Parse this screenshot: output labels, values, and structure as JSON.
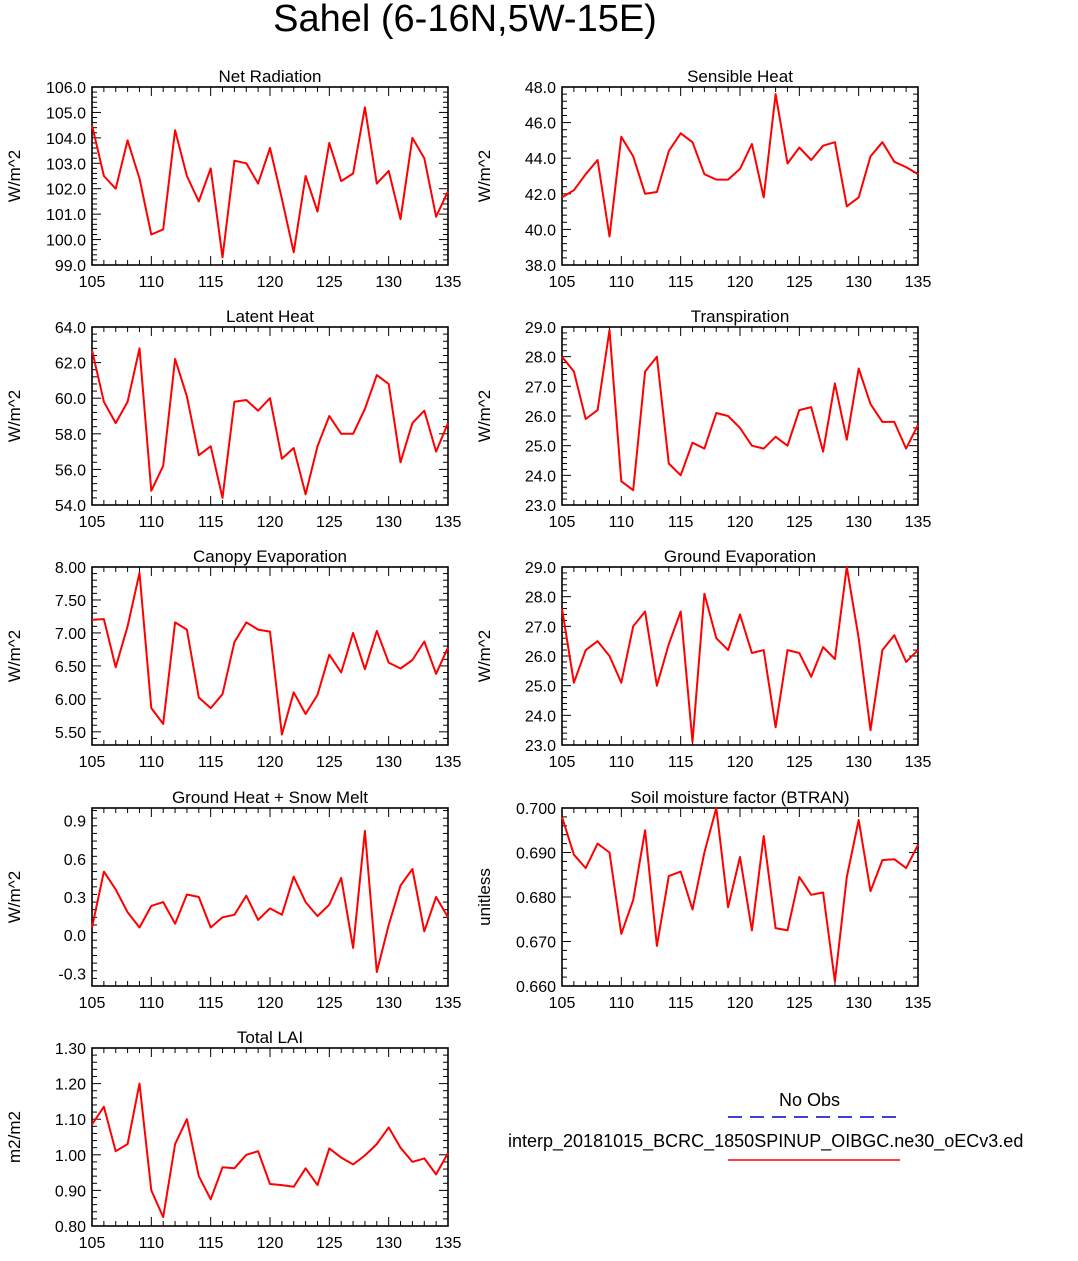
{
  "title": "Sahel (6-16N,5W-15E)",
  "colors": {
    "model_line": "#ff0000",
    "obs_line": "#0000cc",
    "axis": "#000000"
  },
  "legend": {
    "obs_label": "No Obs",
    "model_label": "interp_20181015_BCRC_1850SPINUP_OIBGC.ne30_oECv3.ed"
  },
  "chart_data": [
    {
      "type": "line",
      "title": "Net Radiation",
      "ylabel": "W/m^2",
      "xlim": [
        105,
        135
      ],
      "ylim": [
        99.0,
        106.0
      ],
      "x": [
        105,
        106,
        107,
        108,
        109,
        110,
        111,
        112,
        113,
        114,
        115,
        116,
        117,
        118,
        119,
        120,
        121,
        122,
        123,
        124,
        125,
        126,
        127,
        128,
        129,
        130,
        131,
        132,
        133,
        134,
        135
      ],
      "series": [
        {
          "values": [
            104.5,
            102.5,
            102.0,
            103.9,
            102.4,
            100.2,
            100.4,
            104.3,
            102.5,
            101.5,
            102.8,
            99.3,
            103.1,
            103.0,
            102.2,
            103.6,
            101.6,
            99.5,
            102.5,
            101.1,
            103.8,
            102.3,
            102.6,
            105.2,
            102.2,
            102.7,
            100.8,
            104.0,
            103.2,
            100.9,
            101.9
          ]
        }
      ],
      "xticks": [
        105,
        110,
        115,
        120,
        125,
        130,
        135
      ],
      "yticks": [
        99.0,
        100.0,
        101.0,
        102.0,
        103.0,
        104.0,
        105.0,
        106.0
      ],
      "ytick_labels": [
        "99.0",
        "100.0",
        "101.0",
        "102.0",
        "103.0",
        "104.0",
        "105.0",
        "106.0"
      ]
    },
    {
      "type": "line",
      "title": "Sensible Heat",
      "ylabel": "W/m^2",
      "xlim": [
        105,
        135
      ],
      "ylim": [
        38.0,
        48.0
      ],
      "x": [
        105,
        106,
        107,
        108,
        109,
        110,
        111,
        112,
        113,
        114,
        115,
        116,
        117,
        118,
        119,
        120,
        121,
        122,
        123,
        124,
        125,
        126,
        127,
        128,
        129,
        130,
        131,
        132,
        133,
        134,
        135
      ],
      "series": [
        {
          "values": [
            41.8,
            42.2,
            43.1,
            43.9,
            39.6,
            45.2,
            44.1,
            42.0,
            42.1,
            44.4,
            45.4,
            44.9,
            43.1,
            42.8,
            42.8,
            43.4,
            44.8,
            41.8,
            47.6,
            43.7,
            44.6,
            43.9,
            44.7,
            44.9,
            41.3,
            41.8,
            44.1,
            44.9,
            43.8,
            43.5,
            43.1
          ]
        }
      ],
      "xticks": [
        105,
        110,
        115,
        120,
        125,
        130,
        135
      ],
      "yticks": [
        38.0,
        40.0,
        42.0,
        44.0,
        46.0,
        48.0
      ],
      "ytick_labels": [
        "38.0",
        "40.0",
        "42.0",
        "44.0",
        "46.0",
        "48.0"
      ]
    },
    {
      "type": "line",
      "title": "Latent Heat",
      "ylabel": "W/m^2",
      "xlim": [
        105,
        135
      ],
      "ylim": [
        54.0,
        64.0
      ],
      "x": [
        105,
        106,
        107,
        108,
        109,
        110,
        111,
        112,
        113,
        114,
        115,
        116,
        117,
        118,
        119,
        120,
        121,
        122,
        123,
        124,
        125,
        126,
        127,
        128,
        129,
        130,
        131,
        132,
        133,
        134,
        135
      ],
      "series": [
        {
          "values": [
            62.7,
            59.8,
            58.6,
            59.8,
            62.8,
            54.8,
            56.2,
            62.2,
            60.1,
            56.8,
            57.3,
            54.4,
            59.8,
            59.9,
            59.3,
            60.0,
            56.6,
            57.2,
            54.6,
            57.3,
            59.0,
            58.0,
            58.0,
            59.4,
            61.3,
            60.8,
            56.4,
            58.6,
            59.3,
            57.0,
            58.6
          ]
        }
      ],
      "xticks": [
        105,
        110,
        115,
        120,
        125,
        130,
        135
      ],
      "yticks": [
        54.0,
        56.0,
        58.0,
        60.0,
        62.0,
        64.0
      ],
      "ytick_labels": [
        "54.0",
        "56.0",
        "58.0",
        "60.0",
        "62.0",
        "64.0"
      ]
    },
    {
      "type": "line",
      "title": "Transpiration",
      "ylabel": "W/m^2",
      "xlim": [
        105,
        135
      ],
      "ylim": [
        23.0,
        29.0
      ],
      "x": [
        105,
        106,
        107,
        108,
        109,
        110,
        111,
        112,
        113,
        114,
        115,
        116,
        117,
        118,
        119,
        120,
        121,
        122,
        123,
        124,
        125,
        126,
        127,
        128,
        129,
        130,
        131,
        132,
        133,
        134,
        135
      ],
      "series": [
        {
          "values": [
            28.0,
            27.5,
            25.9,
            26.2,
            28.9,
            23.8,
            23.5,
            27.5,
            28.0,
            24.4,
            24.0,
            25.1,
            24.9,
            26.1,
            26.0,
            25.6,
            25.0,
            24.9,
            25.3,
            25.0,
            26.2,
            26.3,
            24.8,
            27.1,
            25.2,
            27.6,
            26.4,
            25.8,
            25.8,
            24.9,
            25.7
          ]
        }
      ],
      "xticks": [
        105,
        110,
        115,
        120,
        125,
        130,
        135
      ],
      "yticks": [
        23.0,
        24.0,
        25.0,
        26.0,
        27.0,
        28.0,
        29.0
      ],
      "ytick_labels": [
        "23.0",
        "24.0",
        "25.0",
        "26.0",
        "27.0",
        "28.0",
        "29.0"
      ]
    },
    {
      "type": "line",
      "title": "Canopy Evaporation",
      "ylabel": "W/m^2",
      "xlim": [
        105,
        135
      ],
      "ylim": [
        5.3,
        8.0
      ],
      "x": [
        105,
        106,
        107,
        108,
        109,
        110,
        111,
        112,
        113,
        114,
        115,
        116,
        117,
        118,
        119,
        120,
        121,
        122,
        123,
        124,
        125,
        126,
        127,
        128,
        129,
        130,
        131,
        132,
        133,
        134,
        135
      ],
      "series": [
        {
          "values": [
            7.2,
            7.21,
            6.48,
            7.1,
            7.91,
            5.86,
            5.62,
            7.16,
            7.05,
            6.02,
            5.86,
            6.07,
            6.86,
            7.16,
            7.05,
            7.02,
            5.46,
            6.1,
            5.77,
            6.06,
            6.67,
            6.4,
            7.0,
            6.45,
            7.03,
            6.55,
            6.46,
            6.59,
            6.87,
            6.38,
            6.78
          ]
        }
      ],
      "xticks": [
        105,
        110,
        115,
        120,
        125,
        130,
        135
      ],
      "yticks": [
        5.5,
        6.0,
        6.5,
        7.0,
        7.5,
        8.0
      ],
      "ytick_labels": [
        "5.50",
        "6.00",
        "6.50",
        "7.00",
        "7.50",
        "8.00"
      ]
    },
    {
      "type": "line",
      "title": "Ground Evaporation",
      "ylabel": "W/m^2",
      "xlim": [
        105,
        135
      ],
      "ylim": [
        23.0,
        29.0
      ],
      "x": [
        105,
        106,
        107,
        108,
        109,
        110,
        111,
        112,
        113,
        114,
        115,
        116,
        117,
        118,
        119,
        120,
        121,
        122,
        123,
        124,
        125,
        126,
        127,
        128,
        129,
        130,
        131,
        132,
        133,
        134,
        135
      ],
      "series": [
        {
          "values": [
            27.6,
            25.1,
            26.2,
            26.5,
            26.0,
            25.1,
            27.0,
            27.5,
            25.0,
            26.4,
            27.5,
            23.1,
            28.1,
            26.6,
            26.2,
            27.4,
            26.1,
            26.2,
            23.6,
            26.2,
            26.1,
            25.3,
            26.3,
            25.9,
            29.0,
            26.6,
            23.5,
            26.2,
            26.7,
            25.8,
            26.2
          ]
        }
      ],
      "xticks": [
        105,
        110,
        115,
        120,
        125,
        130,
        135
      ],
      "yticks": [
        23.0,
        24.0,
        25.0,
        26.0,
        27.0,
        28.0,
        29.0
      ],
      "ytick_labels": [
        "23.0",
        "24.0",
        "25.0",
        "26.0",
        "27.0",
        "28.0",
        "29.0"
      ]
    },
    {
      "type": "line",
      "title": "Ground Heat + Snow Melt",
      "ylabel": "W/m^2",
      "xlim": [
        105,
        135
      ],
      "ylim": [
        -0.4,
        1.0
      ],
      "x": [
        105,
        106,
        107,
        108,
        109,
        110,
        111,
        112,
        113,
        114,
        115,
        116,
        117,
        118,
        119,
        120,
        121,
        122,
        123,
        124,
        125,
        126,
        127,
        128,
        129,
        130,
        131,
        132,
        133,
        134,
        135
      ],
      "series": [
        {
          "values": [
            0.06,
            0.5,
            0.36,
            0.18,
            0.06,
            0.23,
            0.26,
            0.09,
            0.32,
            0.3,
            0.06,
            0.14,
            0.16,
            0.31,
            0.12,
            0.21,
            0.16,
            0.46,
            0.26,
            0.15,
            0.24,
            0.45,
            -0.1,
            0.82,
            -0.29,
            0.08,
            0.39,
            0.52,
            0.03,
            0.3,
            0.14
          ]
        }
      ],
      "xticks": [
        105,
        110,
        115,
        120,
        125,
        130,
        135
      ],
      "yticks": [
        -0.3,
        0.0,
        0.3,
        0.6,
        0.9
      ],
      "ytick_labels": [
        "-0.3",
        "0.0",
        "0.3",
        "0.6",
        "0.9"
      ]
    },
    {
      "type": "line",
      "title": "Soil moisture factor (BTRAN)",
      "ylabel": "unitless",
      "xlim": [
        105,
        135
      ],
      "ylim": [
        0.66,
        0.7
      ],
      "x": [
        105,
        106,
        107,
        108,
        109,
        110,
        111,
        112,
        113,
        114,
        115,
        116,
        117,
        118,
        119,
        120,
        121,
        122,
        123,
        124,
        125,
        126,
        127,
        128,
        129,
        130,
        131,
        132,
        133,
        134,
        135
      ],
      "series": [
        {
          "values": [
            0.698,
            0.6895,
            0.6865,
            0.692,
            0.69,
            0.6717,
            0.6793,
            0.695,
            0.669,
            0.6847,
            0.6857,
            0.6772,
            0.69,
            0.7,
            0.6777,
            0.689,
            0.6725,
            0.6937,
            0.673,
            0.6725,
            0.6845,
            0.6805,
            0.681,
            0.661,
            0.6845,
            0.6973,
            0.6813,
            0.6883,
            0.6885,
            0.6865,
            0.6917
          ]
        }
      ],
      "xticks": [
        105,
        110,
        115,
        120,
        125,
        130,
        135
      ],
      "yticks": [
        0.66,
        0.67,
        0.68,
        0.69,
        0.7
      ],
      "ytick_labels": [
        "0.660",
        "0.670",
        "0.680",
        "0.690",
        "0.700"
      ]
    },
    {
      "type": "line",
      "title": "Total LAI",
      "ylabel": "m2/m2",
      "xlim": [
        105,
        135
      ],
      "ylim": [
        0.8,
        1.3
      ],
      "x": [
        105,
        106,
        107,
        108,
        109,
        110,
        111,
        112,
        113,
        114,
        115,
        116,
        117,
        118,
        119,
        120,
        121,
        122,
        123,
        124,
        125,
        126,
        127,
        128,
        129,
        130,
        131,
        132,
        133,
        134,
        135
      ],
      "series": [
        {
          "values": [
            1.085,
            1.135,
            1.01,
            1.03,
            1.2,
            0.9,
            0.825,
            1.03,
            1.1,
            0.94,
            0.875,
            0.965,
            0.962,
            1.0,
            1.01,
            0.918,
            0.915,
            0.91,
            0.962,
            0.915,
            1.018,
            0.992,
            0.973,
            0.998,
            1.03,
            1.077,
            1.02,
            0.98,
            0.99,
            0.945,
            1.005
          ]
        }
      ],
      "xticks": [
        105,
        110,
        115,
        120,
        125,
        130,
        135
      ],
      "yticks": [
        0.8,
        0.9,
        1.0,
        1.1,
        1.2,
        1.3
      ],
      "ytick_labels": [
        "0.80",
        "0.90",
        "1.00",
        "1.10",
        "1.20",
        "1.30"
      ]
    }
  ]
}
